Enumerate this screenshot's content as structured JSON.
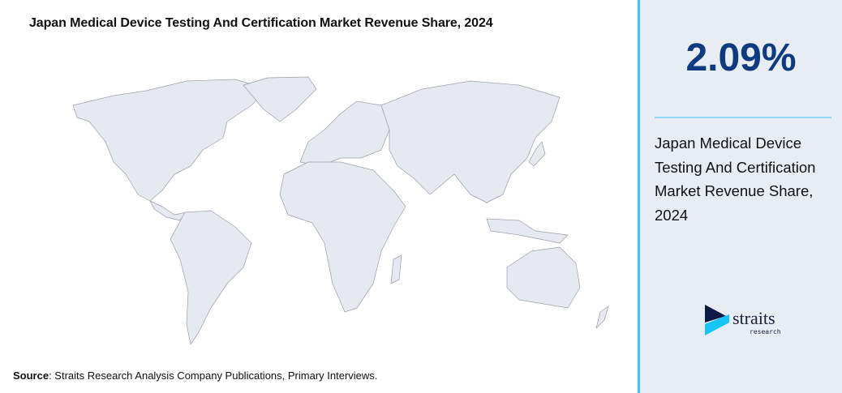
{
  "title": "Japan Medical Device Testing And Certification Market Revenue Share, 2024",
  "source": {
    "label": "Source",
    "text": ": Straits Research Analysis Company Publications, Primary Interviews."
  },
  "panel": {
    "value": "2.09%",
    "description": "Japan Medical Device Testing And Certification Market Revenue Share, 2024",
    "accent_color": "#3cc6f5",
    "value_color": "#0d3a80"
  },
  "map": {
    "type": "world-choropleth",
    "land_color": "#e6e9ef",
    "border_color": "#9a9ea6"
  },
  "logo": {
    "name": "straits",
    "sub": "research"
  }
}
